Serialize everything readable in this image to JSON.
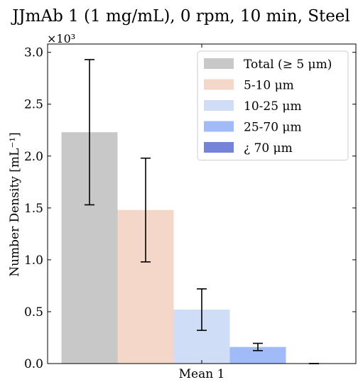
{
  "chart_data": {
    "type": "bar",
    "title": "JJmAb 1 (1 mg/mL), 0 rpm, 10 min, Steel",
    "xlabel": "",
    "ylabel": "Number Density [mL⁻¹]",
    "y_multiplier_label": "×10³",
    "categories": [
      "Mean 1"
    ],
    "ylim": [
      0,
      3.08
    ],
    "yticks": [
      "0.0",
      "0.5",
      "1.0",
      "1.5",
      "2.0",
      "2.5",
      "3.0"
    ],
    "series": [
      {
        "name": "Total (≥ 5 μm)",
        "values": [
          2.23
        ],
        "error": [
          0.7
        ],
        "color": "#c8c8c8"
      },
      {
        "name": "5-10 μm",
        "values": [
          1.48
        ],
        "error": [
          0.5
        ],
        "color": "#f5d7c9"
      },
      {
        "name": "10-25 μm",
        "values": [
          0.52
        ],
        "error": [
          0.2
        ],
        "color": "#cfdef6"
      },
      {
        "name": "25-70 μm",
        "values": [
          0.16
        ],
        "error": [
          0.035
        ],
        "color": "#a0bbf8"
      },
      {
        "name": "¿ 70 μm",
        "values": [
          0.0
        ],
        "error": [
          0.0
        ],
        "color": "#7584d6"
      }
    ],
    "grid": false,
    "legend_position": "top-right"
  }
}
